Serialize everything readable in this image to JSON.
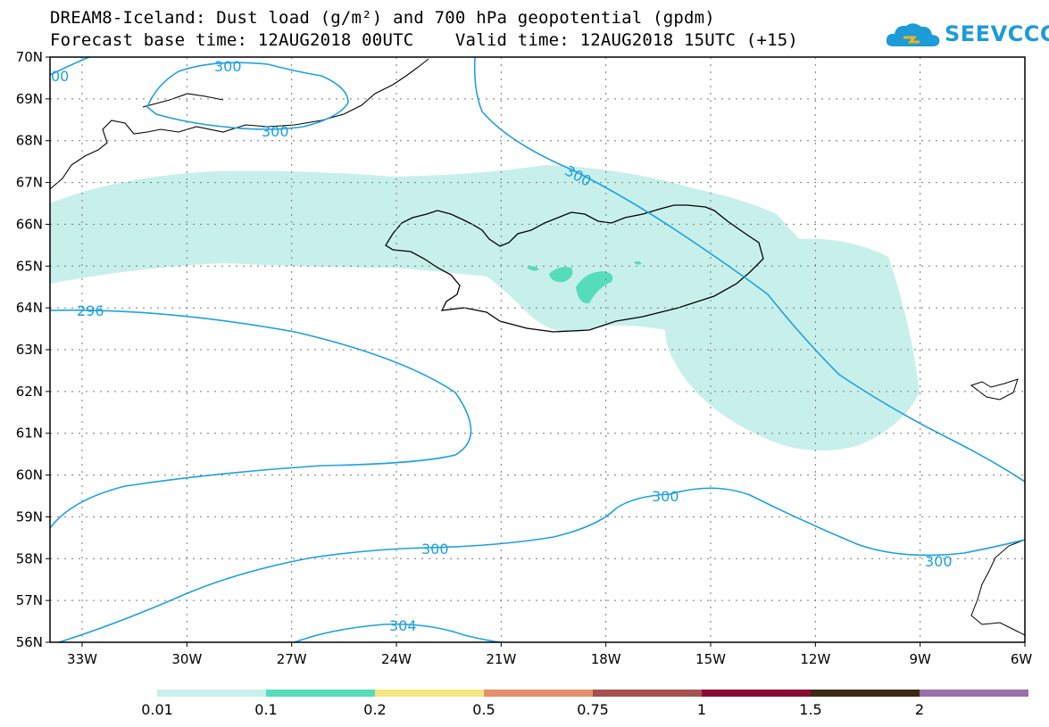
{
  "title_line1": "DREAM8-Iceland: Dust load (g/m²) and 700 hPa geopotential (gpdm)",
  "title_line2": "Forecast base time: 12AUG2018 00UTC    Valid time: 12AUG2018 15UTC (+15)",
  "logo_text": "SEEVCCC",
  "map": {
    "lon_range": [
      "33W",
      "6W"
    ],
    "lat_range": [
      "56N",
      "70N"
    ],
    "lon_labels": [
      "33W",
      "30W",
      "27W",
      "24W",
      "21W",
      "18W",
      "15W",
      "12W",
      "9W",
      "6W"
    ],
    "lat_labels": [
      "70N",
      "69N",
      "68N",
      "67N",
      "66N",
      "65N",
      "64N",
      "63N",
      "62N",
      "61N",
      "60N",
      "59N",
      "58N",
      "57N",
      "56N"
    ],
    "contour_color": "#1da1e0",
    "contour_labels": [
      "300",
      "300",
      "300",
      "296",
      "300",
      "300",
      "300",
      "304",
      "00"
    ]
  },
  "colorbar": {
    "ticks": [
      "0.01",
      "0.1",
      "0.2",
      "0.5",
      "0.75",
      "1",
      "1.5",
      "2"
    ],
    "colors": [
      "#c8f0ea",
      "#55ddbb",
      "#f5e680",
      "#e5906a",
      "#a85050",
      "#8a0c35",
      "#3d2a14",
      "#9a70a8"
    ]
  }
}
